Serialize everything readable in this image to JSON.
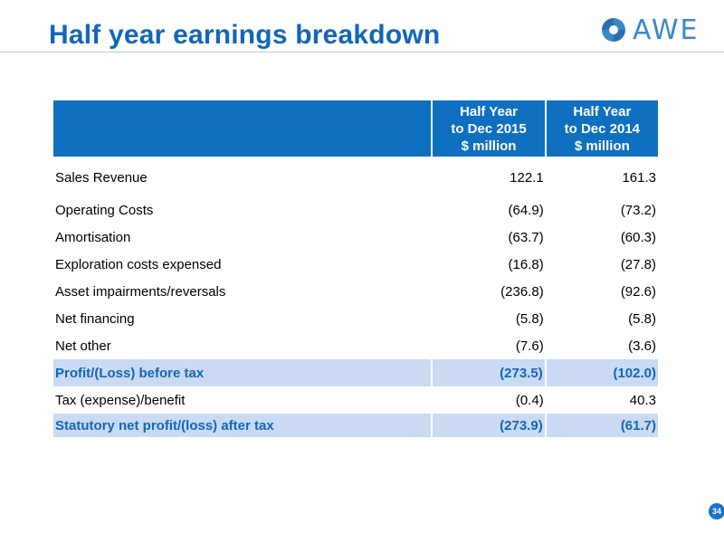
{
  "slide": {
    "title": "Half year earnings breakdown",
    "page_number": "34"
  },
  "logo": {
    "text": "AWE",
    "icon": "awe-swirl-logo",
    "color": "#3a88c9"
  },
  "colors": {
    "title": "#1266b8",
    "header_bg": "#0f6fc0",
    "highlight_bg": "#c9daf2",
    "highlight_text": "#1266b8"
  },
  "table": {
    "headers": [
      "",
      "Half Year\nto Dec 2015\n$ million",
      "Half Year\nto Dec 2014\n$ million"
    ],
    "header_lines": [
      [],
      [
        "Half Year",
        "to Dec 2015",
        "$ million"
      ],
      [
        "Half Year",
        "to Dec 2014",
        "$ million"
      ]
    ],
    "rows": [
      {
        "label": "Sales Revenue",
        "dec2015": "122.1",
        "dec2014": "161.3"
      },
      {
        "label": "Operating Costs",
        "dec2015": "(64.9)",
        "dec2014": "(73.2)"
      },
      {
        "label": "Amortisation",
        "dec2015": "(63.7)",
        "dec2014": "(60.3)"
      },
      {
        "label": "Exploration costs expensed",
        "dec2015": "(16.8)",
        "dec2014": "(27.8)"
      },
      {
        "label": "Asset impairments/reversals",
        "dec2015": "(236.8)",
        "dec2014": "(92.6)"
      },
      {
        "label": "Net financing",
        "dec2015": "(5.8)",
        "dec2014": "(5.8)"
      },
      {
        "label": "Net other",
        "dec2015": "(7.6)",
        "dec2014": "(3.6)"
      },
      {
        "label": "Profit/(Loss) before tax",
        "dec2015": "(273.5)",
        "dec2014": "(102.0)"
      },
      {
        "label": "Tax (expense)/benefit",
        "dec2015": "(0.4)",
        "dec2014": "40.3"
      },
      {
        "label": "Statutory net profit/(loss) after tax",
        "dec2015": "(273.9)",
        "dec2014": "(61.7)"
      }
    ]
  }
}
